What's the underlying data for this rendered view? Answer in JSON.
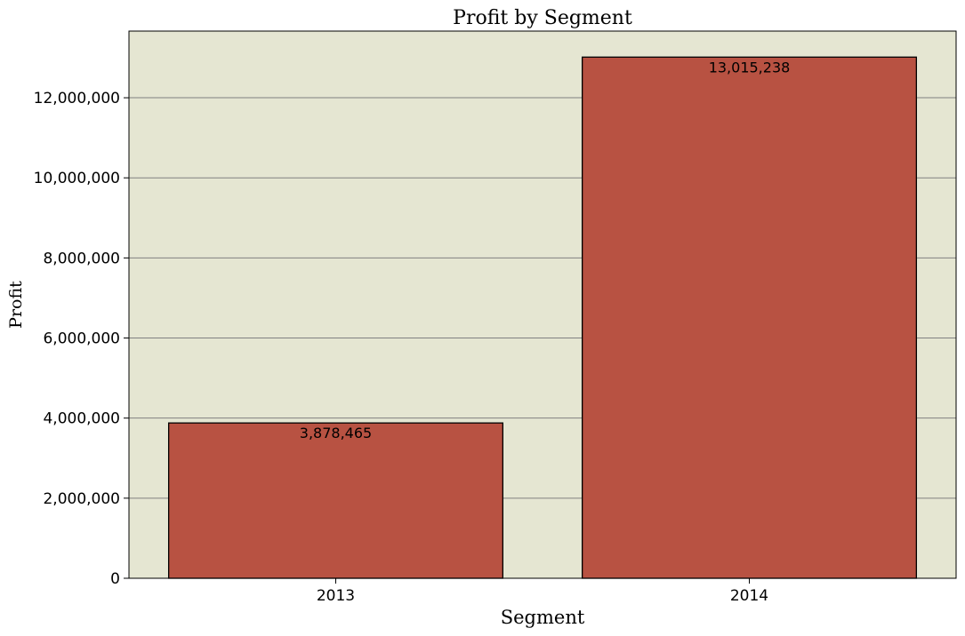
{
  "chart_data": {
    "type": "bar",
    "title": "Profit by Segment",
    "xlabel": "Segment",
    "ylabel": "Profit",
    "categories": [
      "2013",
      "2014"
    ],
    "values": [
      3878465,
      13015238
    ],
    "value_labels": [
      "3,878,465",
      "13,015,238"
    ],
    "ylim": [
      0,
      13665000
    ],
    "yticks": [
      0,
      2000000,
      4000000,
      6000000,
      8000000,
      10000000,
      12000000
    ],
    "ytick_labels": [
      "0",
      "2,000,000",
      "4,000,000",
      "6,000,000",
      "8,000,000",
      "10,000,000",
      "12,000,000"
    ],
    "grid": "horizontal",
    "legend": "none",
    "colors": {
      "bar": "#b85242",
      "bar_edge": "#000000",
      "plot_background": "#e5e6d2",
      "grid": "#808080"
    }
  }
}
